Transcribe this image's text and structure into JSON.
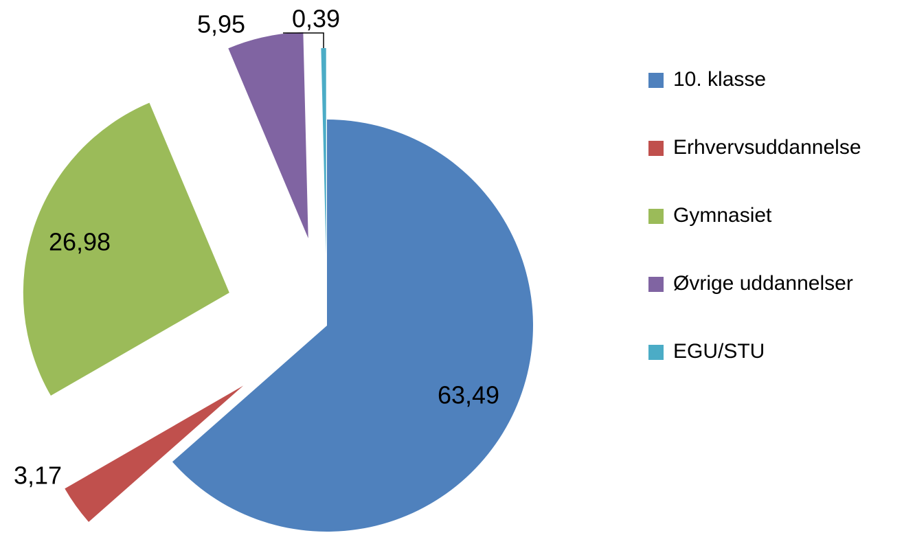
{
  "chart_data": {
    "type": "pie",
    "categories": [
      "10. klasse",
      "Erhvervsuddannelse",
      "Gymnasiet",
      "Øvrige uddannelser",
      "EGU/STU"
    ],
    "values": [
      63.49,
      3.17,
      26.98,
      5.95,
      0.39
    ],
    "value_labels": [
      "63,49",
      "3,17",
      "26,98",
      "5,95",
      "0,39"
    ],
    "colors": [
      "#4f81bd",
      "#c0504d",
      "#9bbb59",
      "#8064a2",
      "#4bacc6"
    ],
    "legend": "right"
  }
}
